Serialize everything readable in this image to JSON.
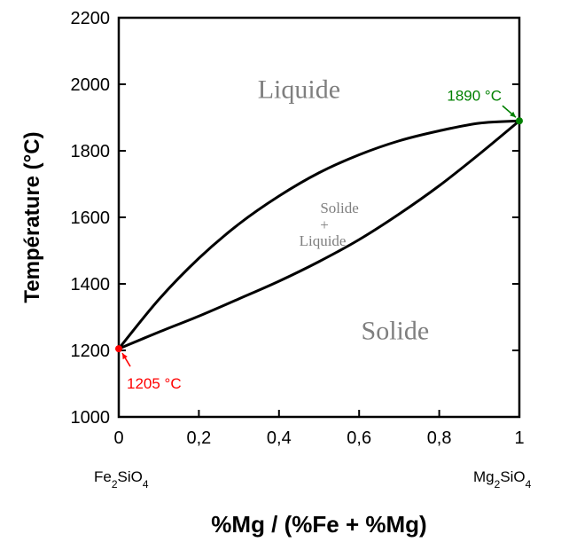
{
  "chart_data": {
    "type": "line",
    "title": "",
    "xlabel": "%Mg / (%Fe + %Mg)",
    "ylabel": "Température (°C)",
    "xlim": [
      0,
      1
    ],
    "ylim": [
      1000,
      2200
    ],
    "x_ticks": [
      "0",
      "0,2",
      "0,4",
      "0,6",
      "0,8",
      "1"
    ],
    "y_ticks": [
      "1000",
      "1200",
      "1400",
      "1600",
      "1800",
      "2000",
      "2200"
    ],
    "grid": false,
    "series": [
      {
        "name": "",
        "x": [
          0,
          0.1,
          0.2,
          0.3,
          0.4,
          0.5,
          0.6,
          0.7,
          0.8,
          0.9,
          1.0
        ],
        "y": [
          1205,
          1353,
          1477,
          1580,
          1664,
          1734,
          1788,
          1830,
          1860,
          1883,
          1890
        ]
      },
      {
        "name": "",
        "x": [
          0,
          0.1,
          0.2,
          0.3,
          0.4,
          0.5,
          0.6,
          0.7,
          0.8,
          0.9,
          1.0
        ],
        "y": [
          1205,
          1255,
          1303,
          1355,
          1408,
          1467,
          1533,
          1610,
          1695,
          1790,
          1890
        ]
      }
    ],
    "regions": [
      {
        "label": "Liquide",
        "x": 0.45,
        "y": 1985
      },
      {
        "label": "Solide",
        "x": 0.69,
        "y": 1260
      }
    ],
    "mixed_region": {
      "top": "Solide",
      "sign": "+",
      "bottom": "Liquide",
      "x": 0.52,
      "y": 1565
    },
    "endmembers": {
      "left": "Fe2SiO4",
      "right": "Mg2SiO4"
    },
    "points": [
      {
        "label": "1205 °C",
        "x": 0,
        "y": 1205,
        "color": "#ff0000"
      },
      {
        "label": "1890 °C",
        "x": 1,
        "y": 1890,
        "color": "#008000"
      }
    ],
    "colors": {
      "curves": "#000000",
      "region_text": "#7f7f7f",
      "low_point": "#ff0000",
      "high_point": "#008000"
    }
  }
}
